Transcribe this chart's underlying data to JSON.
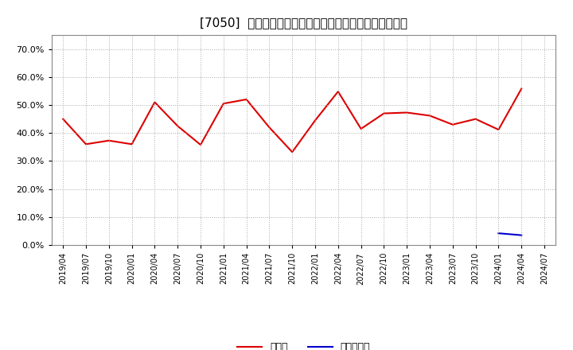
{
  "title": "[7050]  現預金、有利子負債の総資産に対する比率の推移",
  "cash_dates": [
    "2019/04",
    "2019/07",
    "2019/10",
    "2020/01",
    "2020/04",
    "2020/07",
    "2020/10",
    "2021/01",
    "2021/04",
    "2021/07",
    "2021/10",
    "2022/01",
    "2022/04",
    "2022/07",
    "2022/10",
    "2023/01",
    "2023/04",
    "2023/07",
    "2023/10",
    "2024/01",
    "2024/04"
  ],
  "cash_values": [
    0.45,
    0.36,
    0.373,
    0.36,
    0.51,
    0.425,
    0.358,
    0.505,
    0.52,
    0.42,
    0.332,
    0.445,
    0.548,
    0.415,
    0.47,
    0.473,
    0.462,
    0.43,
    0.45,
    0.412,
    0.558
  ],
  "debt_dates": [
    "2024/01",
    "2024/04"
  ],
  "debt_values": [
    0.042,
    0.035
  ],
  "all_dates": [
    "2019/04",
    "2019/07",
    "2019/10",
    "2020/01",
    "2020/04",
    "2020/07",
    "2020/10",
    "2021/01",
    "2021/04",
    "2021/07",
    "2021/10",
    "2022/01",
    "2022/04",
    "2022/07",
    "2022/10",
    "2023/01",
    "2023/04",
    "2023/07",
    "2023/10",
    "2024/01",
    "2024/04",
    "2024/07"
  ],
  "cash_color": "#dd0000",
  "debt_color": "#0000cc",
  "background_color": "#ffffff",
  "plot_bg_color": "#ffffff",
  "grid_color": "#aaaaaa",
  "ylim": [
    0.0,
    0.75
  ],
  "yticks": [
    0.0,
    0.1,
    0.2,
    0.3,
    0.4,
    0.5,
    0.6,
    0.7
  ],
  "legend_cash": "現預金",
  "legend_debt": "有利子負債"
}
